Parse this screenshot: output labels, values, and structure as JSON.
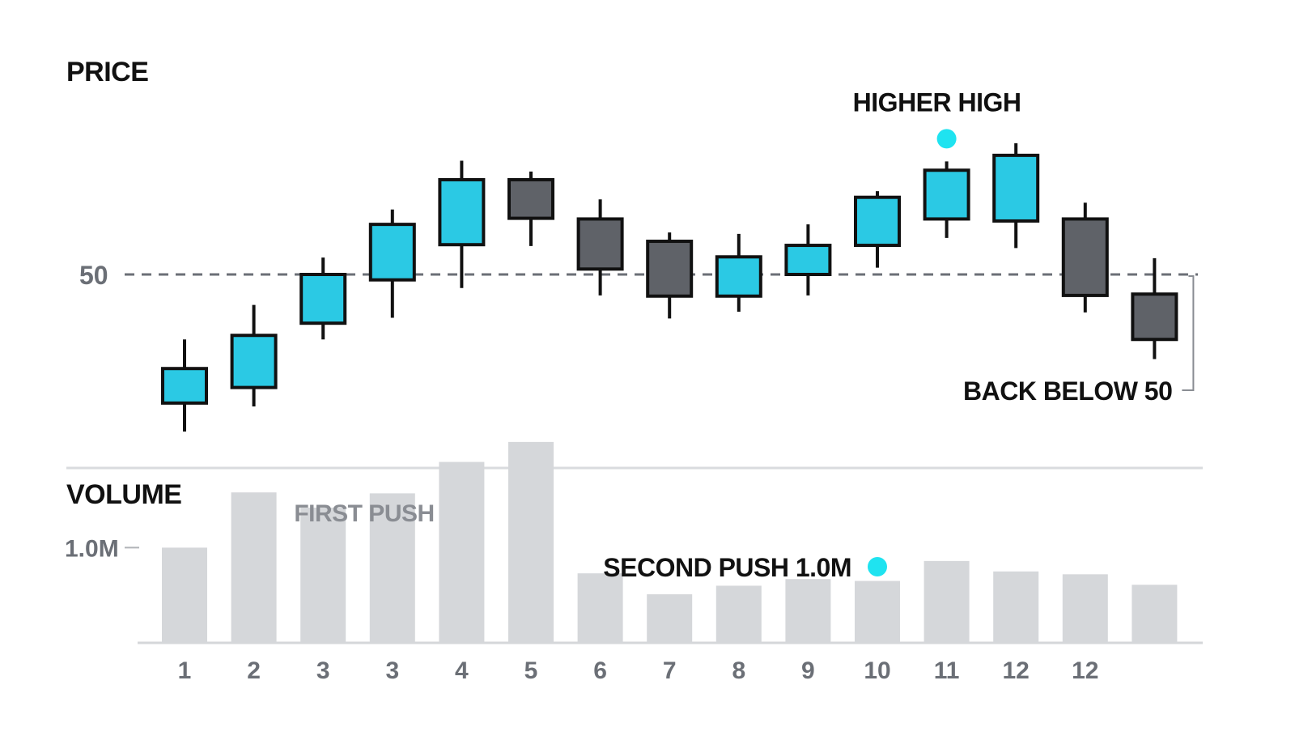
{
  "colors": {
    "up": "#2bc9e4",
    "down": "#5f6268",
    "outline": "#111111",
    "volume_bar": "#d5d7da",
    "reference_line": "#6b6f76",
    "highlight_dot": "#1fe3f0",
    "text": "#111111",
    "muted_text": "#6b6f76"
  },
  "chart_data": [
    {
      "type": "candlestick",
      "title": "PRICE",
      "categories": [
        "1",
        "2",
        "3",
        "3",
        "4",
        "5",
        "6",
        "7",
        "8",
        "9",
        "10",
        "11",
        "12",
        "12",
        ""
      ],
      "candles": [
        {
          "open": 31.0,
          "high": 40.4,
          "low": 26.8,
          "close": 36.1
        },
        {
          "open": 33.3,
          "high": 45.5,
          "low": 30.5,
          "close": 41.0
        },
        {
          "open": 42.8,
          "high": 52.5,
          "low": 40.4,
          "close": 50.0
        },
        {
          "open": 49.2,
          "high": 59.6,
          "low": 43.6,
          "close": 57.4
        },
        {
          "open": 54.4,
          "high": 66.8,
          "low": 48.0,
          "close": 64.0
        },
        {
          "open": 64.0,
          "high": 65.2,
          "low": 54.2,
          "close": 58.3
        },
        {
          "open": 58.2,
          "high": 61.1,
          "low": 46.9,
          "close": 50.8
        },
        {
          "open": 54.9,
          "high": 56.2,
          "low": 43.5,
          "close": 46.8
        },
        {
          "open": 46.8,
          "high": 56.0,
          "low": 44.5,
          "close": 52.6
        },
        {
          "open": 50.0,
          "high": 57.4,
          "low": 46.9,
          "close": 54.3
        },
        {
          "open": 54.3,
          "high": 62.3,
          "low": 51.0,
          "close": 61.4
        },
        {
          "open": 58.2,
          "high": 66.7,
          "low": 55.4,
          "close": 65.4
        },
        {
          "open": 57.9,
          "high": 69.4,
          "low": 53.9,
          "close": 67.6
        },
        {
          "open": 58.2,
          "high": 60.6,
          "low": 44.4,
          "close": 46.9
        },
        {
          "open": 47.1,
          "high": 52.4,
          "low": 37.5,
          "close": 40.4
        }
      ],
      "reference_line": {
        "value": 50,
        "label": "50",
        "style": "dashed"
      },
      "annotations": [
        {
          "text": "HIGHER HIGH",
          "candle_index": 11,
          "marker": "dot"
        },
        {
          "text": "BACK BELOW 50",
          "candle_index": 14,
          "marker": "bracket"
        }
      ],
      "ylim": [
        25,
        75
      ],
      "grid": false,
      "legend": "none"
    },
    {
      "type": "bar",
      "title": "VOLUME",
      "categories": [
        "1",
        "2",
        "3",
        "3",
        "4",
        "5",
        "6",
        "7",
        "8",
        "9",
        "10",
        "11",
        "12",
        "12",
        ""
      ],
      "values": [
        1.0,
        1.58,
        1.42,
        1.57,
        1.9,
        2.11,
        0.73,
        0.51,
        0.6,
        0.67,
        0.65,
        0.86,
        0.75,
        0.72,
        0.61
      ],
      "unit": "M",
      "reference_tick": {
        "value": 1.0,
        "label": "1.0M"
      },
      "annotations": [
        {
          "text": "FIRST PUSH"
        },
        {
          "text": "SECOND PUSH 1.0M",
          "marker": "dot"
        }
      ],
      "ylim": [
        0,
        2.5
      ],
      "grid": false,
      "legend": "none"
    }
  ]
}
